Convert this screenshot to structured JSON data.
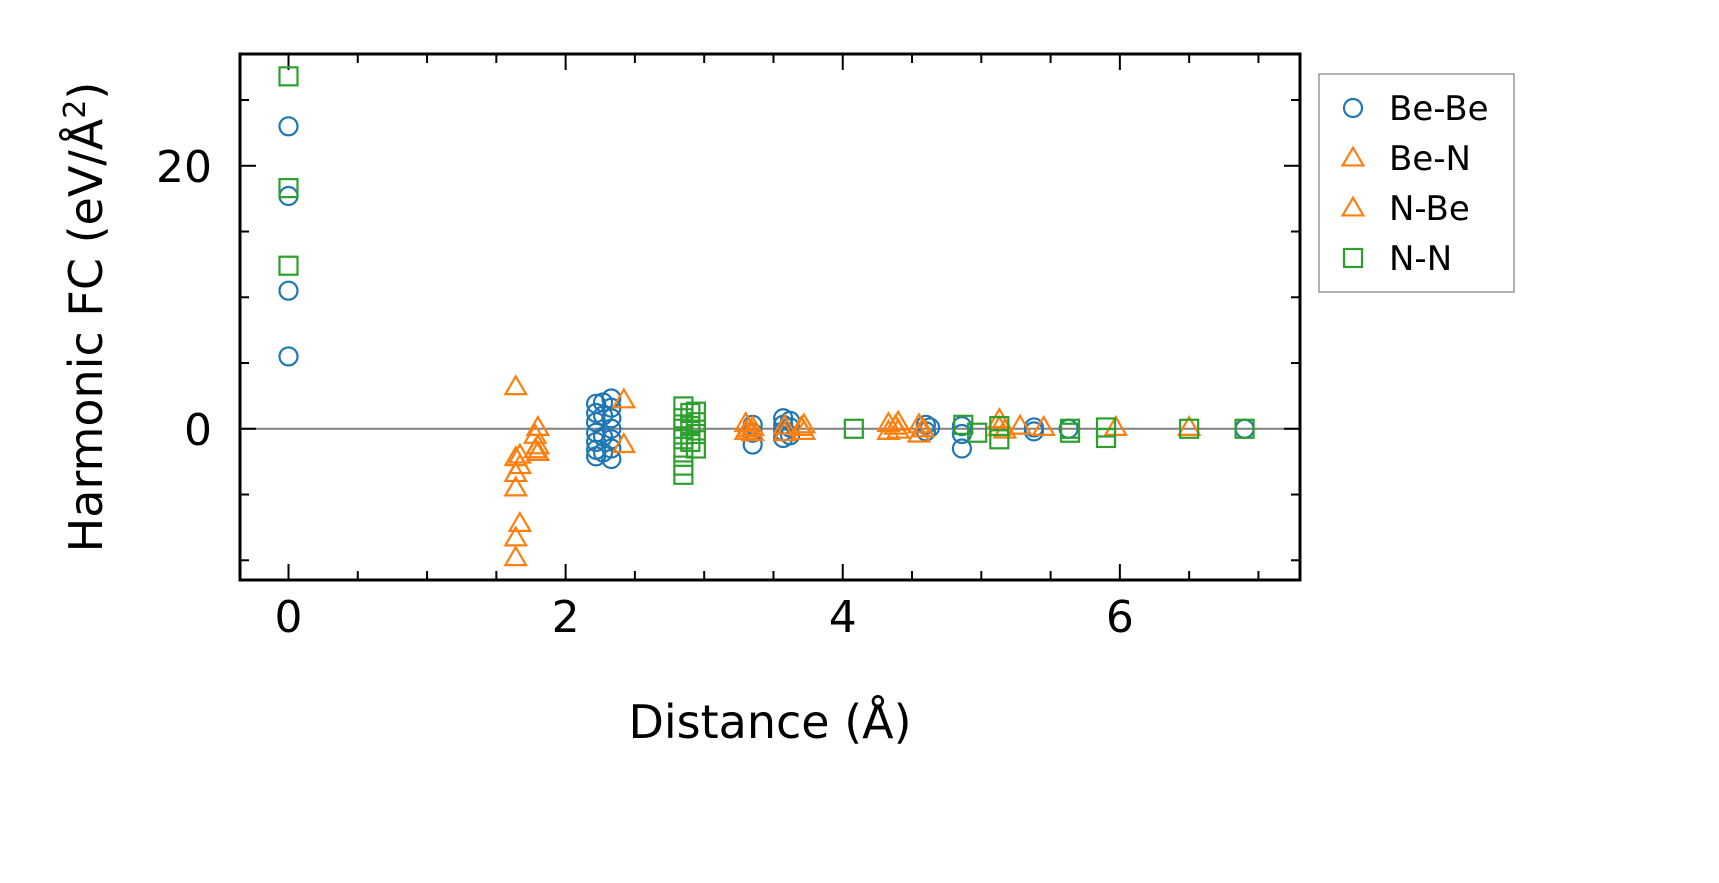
{
  "chart_data": {
    "type": "scatter",
    "title": "",
    "xlabel": "Distance (Å)",
    "ylabel": "Harmonic FC (eV/Å²)",
    "ylabel_parts": {
      "main": "Harmonic FC (eV/Å",
      "sup": "2",
      "close": ")"
    },
    "xlim": [
      -0.35,
      7.3
    ],
    "ylim": [
      -11.5,
      28.5
    ],
    "xticks": [
      0,
      2,
      4,
      6
    ],
    "yticks": [
      0,
      20
    ],
    "x_minor_step": 0.5,
    "y_minor_step": 5,
    "zero_line": true,
    "grid": false,
    "legend_position": "outside-right-top",
    "series": [
      {
        "name": "Be-Be",
        "marker": "circle",
        "color": "#1f77b4",
        "points": [
          [
            0.0,
            23.0
          ],
          [
            0.0,
            17.7
          ],
          [
            0.0,
            10.5
          ],
          [
            0.0,
            5.5
          ],
          [
            2.22,
            1.9
          ],
          [
            2.22,
            1.2
          ],
          [
            2.22,
            0.5
          ],
          [
            2.22,
            -0.3
          ],
          [
            2.22,
            -1.0
          ],
          [
            2.22,
            -1.6
          ],
          [
            2.22,
            -2.1
          ],
          [
            2.27,
            2.0
          ],
          [
            2.27,
            1.0
          ],
          [
            2.27,
            -0.6
          ],
          [
            2.27,
            -1.8
          ],
          [
            2.33,
            2.3
          ],
          [
            2.33,
            1.6
          ],
          [
            2.33,
            0.8
          ],
          [
            2.33,
            0.0
          ],
          [
            2.33,
            -0.8
          ],
          [
            2.33,
            -1.5
          ],
          [
            2.33,
            -2.3
          ],
          [
            3.35,
            -0.3
          ],
          [
            3.35,
            0.3
          ],
          [
            3.35,
            -1.2
          ],
          [
            3.57,
            0.8
          ],
          [
            3.57,
            0.3
          ],
          [
            3.57,
            -0.2
          ],
          [
            3.57,
            -0.7
          ],
          [
            3.62,
            0.6
          ],
          [
            3.62,
            0.1
          ],
          [
            3.62,
            -0.5
          ],
          [
            4.6,
            0.3
          ],
          [
            4.6,
            -0.2
          ],
          [
            4.63,
            0.1
          ],
          [
            4.86,
            0.2
          ],
          [
            4.86,
            -0.4
          ],
          [
            4.86,
            -1.5
          ],
          [
            5.38,
            0.1
          ],
          [
            5.38,
            -0.2
          ],
          [
            5.63,
            0.0
          ],
          [
            6.9,
            0.0
          ]
        ]
      },
      {
        "name": "Be-N",
        "marker": "triangle",
        "color": "#ff7f0e",
        "points": [
          [
            1.64,
            3.2
          ],
          [
            1.64,
            -2.2
          ],
          [
            1.64,
            -3.4
          ],
          [
            1.64,
            -4.5
          ],
          [
            1.64,
            -8.3
          ],
          [
            1.64,
            -9.8
          ],
          [
            1.67,
            -2.0
          ],
          [
            1.67,
            -2.8
          ],
          [
            1.67,
            -7.2
          ],
          [
            1.8,
            0.1
          ],
          [
            1.8,
            -1.3
          ],
          [
            1.8,
            -1.8
          ],
          [
            2.42,
            2.2
          ],
          [
            2.42,
            -1.2
          ],
          [
            3.3,
            0.4
          ],
          [
            3.3,
            -0.2
          ],
          [
            3.35,
            0.1
          ],
          [
            3.35,
            -0.3
          ],
          [
            3.58,
            0.2
          ],
          [
            3.58,
            -0.3
          ],
          [
            3.72,
            0.3
          ],
          [
            3.72,
            -0.2
          ],
          [
            4.33,
            0.4
          ],
          [
            4.33,
            -0.2
          ],
          [
            4.4,
            0.5
          ],
          [
            4.4,
            -0.1
          ],
          [
            4.55,
            0.3
          ],
          [
            4.55,
            -0.4
          ],
          [
            5.13,
            0.7
          ],
          [
            5.13,
            0.1
          ],
          [
            5.28,
            0.2
          ],
          [
            5.45,
            0.1
          ],
          [
            5.97,
            0.1
          ],
          [
            6.5,
            0.1
          ]
        ]
      },
      {
        "name": "N-Be",
        "marker": "triangle",
        "color": "#ff7f0e",
        "points": [
          [
            1.78,
            -0.5
          ],
          [
            1.78,
            -1.6
          ],
          [
            3.32,
            0.0
          ],
          [
            3.7,
            0.1
          ],
          [
            4.38,
            0.2
          ],
          [
            4.58,
            0.0
          ],
          [
            5.17,
            -0.1
          ]
        ]
      },
      {
        "name": "N-N",
        "marker": "square",
        "color": "#2ca02c",
        "points": [
          [
            0.0,
            26.8
          ],
          [
            0.0,
            18.3
          ],
          [
            0.0,
            12.4
          ],
          [
            2.85,
            1.7
          ],
          [
            2.85,
            0.8
          ],
          [
            2.85,
            0.0
          ],
          [
            2.85,
            -0.8
          ],
          [
            2.85,
            -1.8
          ],
          [
            2.85,
            -2.8
          ],
          [
            2.85,
            -3.5
          ],
          [
            2.9,
            1.2
          ],
          [
            2.9,
            0.2
          ],
          [
            2.9,
            -1.0
          ],
          [
            2.94,
            1.3
          ],
          [
            2.94,
            0.5
          ],
          [
            2.94,
            -0.4
          ],
          [
            2.94,
            -1.5
          ],
          [
            4.08,
            0.0
          ],
          [
            4.87,
            0.3
          ],
          [
            4.97,
            -0.3
          ],
          [
            5.13,
            0.2
          ],
          [
            5.13,
            -0.8
          ],
          [
            5.64,
            0.0
          ],
          [
            5.64,
            -0.3
          ],
          [
            5.9,
            0.1
          ],
          [
            5.9,
            -0.7
          ],
          [
            6.5,
            0.0
          ],
          [
            6.9,
            0.0
          ]
        ]
      }
    ]
  }
}
